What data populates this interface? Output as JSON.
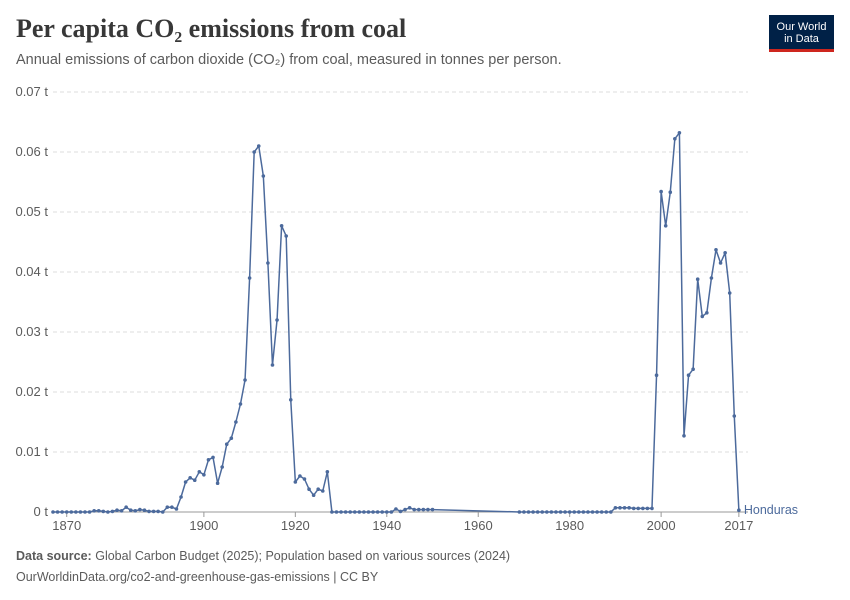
{
  "header": {
    "title": "Per capita CO₂ emissions from coal",
    "subtitle": "Annual emissions of carbon dioxide (CO₂) from coal, measured in tonnes per person."
  },
  "logo": {
    "line1": "Our World",
    "line2": "in Data"
  },
  "footer": {
    "source_label": "Data source:",
    "source_text": "Global Carbon Budget (2025); Population based on various sources (2024)",
    "url_text": "OurWorldinData.org/co2-and-greenhouse-gas-emissions | CC BY"
  },
  "colors": {
    "series": "#4c6a9c",
    "grid": "#dddddd",
    "axis": "#666666",
    "text": "#5b5b5b"
  },
  "chart_data": {
    "type": "line",
    "title": "Per capita CO₂ emissions from coal",
    "xlabel": "",
    "ylabel": "",
    "xlim": [
      1867,
      2019
    ],
    "ylim": [
      0,
      0.07
    ],
    "y_ticks": [
      0,
      0.01,
      0.02,
      0.03,
      0.04,
      0.05,
      0.06,
      0.07
    ],
    "y_tick_labels": [
      "0 t",
      "0.01 t",
      "0.02 t",
      "0.03 t",
      "0.04 t",
      "0.05 t",
      "0.06 t",
      "0.07 t"
    ],
    "x_ticks": [
      1870,
      1900,
      1920,
      1940,
      1960,
      1980,
      2000,
      2017
    ],
    "x_tick_labels": [
      "1870",
      "1900",
      "1920",
      "1940",
      "1960",
      "1980",
      "2000",
      "2017"
    ],
    "grid": "horizontal dashed",
    "series": [
      {
        "name": "Honduras",
        "points": [
          [
            1867,
            0
          ],
          [
            1868,
            0
          ],
          [
            1869,
            0
          ],
          [
            1870,
            0
          ],
          [
            1871,
            0
          ],
          [
            1872,
            0
          ],
          [
            1873,
            0
          ],
          [
            1874,
            0
          ],
          [
            1875,
            0
          ],
          [
            1876,
            0.0002
          ],
          [
            1877,
            0.0002
          ],
          [
            1878,
            0.0001
          ],
          [
            1879,
            0
          ],
          [
            1880,
            0.0001
          ],
          [
            1881,
            0.0003
          ],
          [
            1882,
            0.0002
          ],
          [
            1883,
            0.0008
          ],
          [
            1884,
            0.0003
          ],
          [
            1885,
            0.0002
          ],
          [
            1886,
            0.0004
          ],
          [
            1887,
            0.0003
          ],
          [
            1888,
            0.0001
          ],
          [
            1889,
            0.0001
          ],
          [
            1890,
            0.0001
          ],
          [
            1891,
            0
          ],
          [
            1892,
            0.0008
          ],
          [
            1893,
            0.0008
          ],
          [
            1894,
            0.0005
          ],
          [
            1895,
            0.0025
          ],
          [
            1896,
            0.005
          ],
          [
            1897,
            0.0057
          ],
          [
            1898,
            0.0053
          ],
          [
            1899,
            0.0067
          ],
          [
            1900,
            0.0062
          ],
          [
            1901,
            0.0087
          ],
          [
            1902,
            0.0091
          ],
          [
            1903,
            0.0048
          ],
          [
            1904,
            0.0075
          ],
          [
            1905,
            0.0113
          ],
          [
            1906,
            0.0123
          ],
          [
            1907,
            0.015
          ],
          [
            1908,
            0.018
          ],
          [
            1909,
            0.022
          ],
          [
            1910,
            0.039
          ],
          [
            1911,
            0.06
          ],
          [
            1912,
            0.061
          ],
          [
            1913,
            0.056
          ],
          [
            1914,
            0.0415
          ],
          [
            1915,
            0.0245
          ],
          [
            1916,
            0.032
          ],
          [
            1917,
            0.0477
          ],
          [
            1918,
            0.046
          ],
          [
            1919,
            0.0187
          ],
          [
            1920,
            0.005
          ],
          [
            1921,
            0.006
          ],
          [
            1922,
            0.0055
          ],
          [
            1923,
            0.0038
          ],
          [
            1924,
            0.0028
          ],
          [
            1925,
            0.0038
          ],
          [
            1926,
            0.0035
          ],
          [
            1927,
            0.0067
          ],
          [
            1928,
            0
          ],
          [
            1929,
            0
          ],
          [
            1930,
            0
          ],
          [
            1931,
            0
          ],
          [
            1932,
            0
          ],
          [
            1933,
            0
          ],
          [
            1934,
            0
          ],
          [
            1935,
            0
          ],
          [
            1936,
            0
          ],
          [
            1937,
            0
          ],
          [
            1938,
            0
          ],
          [
            1939,
            0
          ],
          [
            1940,
            0
          ],
          [
            1941,
            0
          ],
          [
            1942,
            0.0005
          ],
          [
            1943,
            0.0001
          ],
          [
            1944,
            0.0004
          ],
          [
            1945,
            0.0007
          ],
          [
            1946,
            0.0004
          ],
          [
            1947,
            0.0004
          ],
          [
            1948,
            0.0004
          ],
          [
            1949,
            0.0004
          ],
          [
            1950,
            0.0004
          ],
          [
            1969,
            0
          ],
          [
            1970,
            0
          ],
          [
            1971,
            0
          ],
          [
            1972,
            0
          ],
          [
            1973,
            0
          ],
          [
            1974,
            0
          ],
          [
            1975,
            0
          ],
          [
            1976,
            0
          ],
          [
            1977,
            0
          ],
          [
            1978,
            0
          ],
          [
            1979,
            0
          ],
          [
            1980,
            0
          ],
          [
            1981,
            0
          ],
          [
            1982,
            0
          ],
          [
            1983,
            0
          ],
          [
            1984,
            0
          ],
          [
            1985,
            0
          ],
          [
            1986,
            0
          ],
          [
            1987,
            0
          ],
          [
            1988,
            0
          ],
          [
            1989,
            0
          ],
          [
            1990,
            0.0007
          ],
          [
            1991,
            0.0007
          ],
          [
            1992,
            0.0007
          ],
          [
            1993,
            0.0007
          ],
          [
            1994,
            0.0006
          ],
          [
            1995,
            0.0006
          ],
          [
            1996,
            0.0006
          ],
          [
            1997,
            0.0006
          ],
          [
            1998,
            0.0006
          ],
          [
            1999,
            0.0228
          ],
          [
            2000,
            0.0534
          ],
          [
            2001,
            0.0477
          ],
          [
            2002,
            0.0533
          ],
          [
            2003,
            0.0622
          ],
          [
            2004,
            0.0632
          ],
          [
            2005,
            0.0127
          ],
          [
            2006,
            0.0228
          ],
          [
            2007,
            0.0238
          ],
          [
            2008,
            0.0388
          ],
          [
            2009,
            0.0326
          ],
          [
            2010,
            0.0332
          ],
          [
            2011,
            0.039
          ],
          [
            2012,
            0.0437
          ],
          [
            2013,
            0.0415
          ],
          [
            2014,
            0.0432
          ],
          [
            2015,
            0.0365
          ],
          [
            2016,
            0.016
          ],
          [
            2017,
            0.0003
          ]
        ]
      }
    ]
  }
}
